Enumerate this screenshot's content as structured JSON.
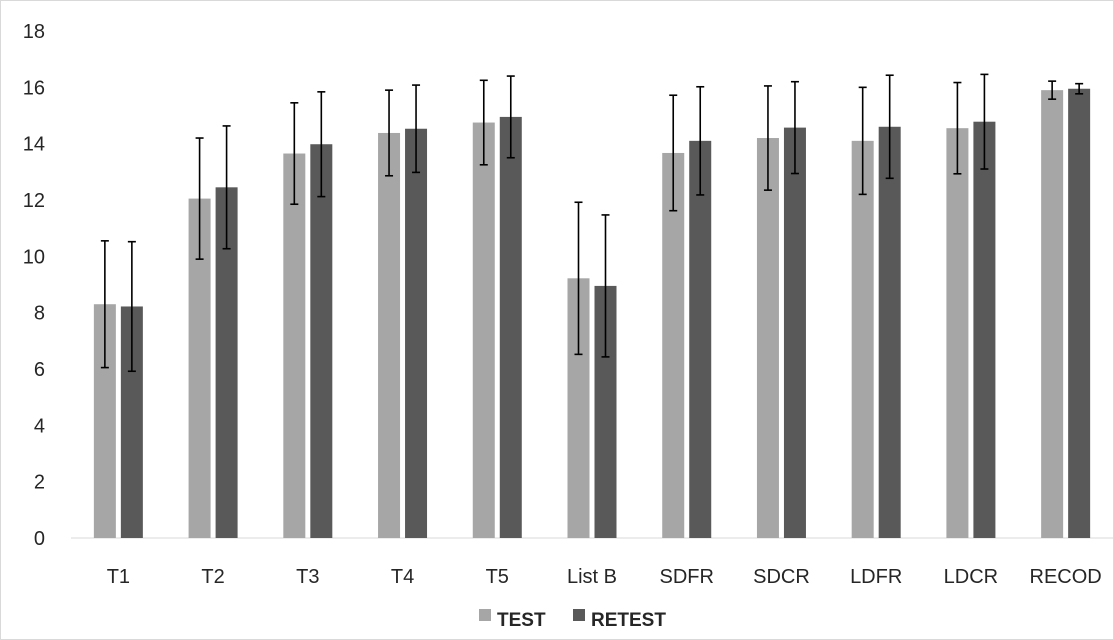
{
  "chart_data": {
    "type": "bar",
    "title": "",
    "xlabel": "",
    "ylabel": "",
    "ylim": [
      0,
      18
    ],
    "yticks": [
      0,
      2,
      4,
      6,
      8,
      10,
      12,
      14,
      16,
      18
    ],
    "grid": false,
    "legend_position": "bottom",
    "categories": [
      "T1",
      "T2",
      "T3",
      "T4",
      "T5",
      "List B",
      "SDFR",
      "SDCR",
      "LDFR",
      "LDCR",
      "RECOD"
    ],
    "series": [
      {
        "name": "TEST",
        "color": "#a6a6a6",
        "values": [
          8.3,
          12.05,
          13.65,
          14.38,
          14.75,
          9.22,
          13.67,
          14.2,
          14.1,
          14.55,
          15.9
        ],
        "error": [
          2.25,
          2.15,
          1.8,
          1.52,
          1.5,
          2.7,
          2.05,
          1.85,
          1.9,
          1.62,
          0.32
        ]
      },
      {
        "name": "RETEST",
        "color": "#595959",
        "values": [
          8.22,
          12.45,
          13.98,
          14.53,
          14.95,
          8.95,
          14.1,
          14.57,
          14.6,
          14.78,
          15.95
        ],
        "error": [
          2.3,
          2.18,
          1.86,
          1.55,
          1.45,
          2.52,
          1.92,
          1.63,
          1.83,
          1.68,
          0.18
        ]
      }
    ]
  }
}
